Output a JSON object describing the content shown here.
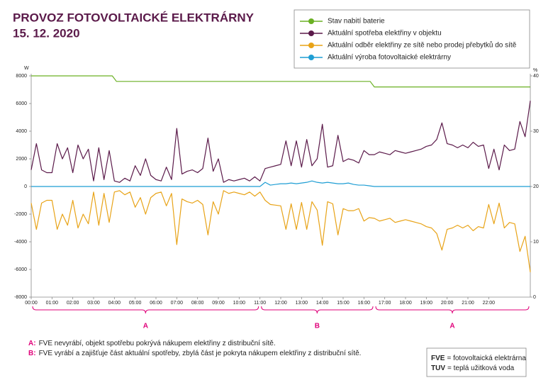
{
  "chart_data": {
    "type": "line",
    "title": "PROVOZ FOTOVOLTAICKÉ ELEKTRÁRNY",
    "subtitle": "15. 12. 2020",
    "y_label": "W",
    "y2_label": "%",
    "x": [
      0,
      0.25,
      0.5,
      0.75,
      1,
      1.25,
      1.5,
      1.75,
      2,
      2.25,
      2.5,
      2.75,
      3,
      3.25,
      3.5,
      3.75,
      4,
      4.25,
      4.5,
      4.75,
      5,
      5.25,
      5.5,
      5.75,
      6,
      6.25,
      6.5,
      6.75,
      7,
      7.25,
      7.5,
      7.75,
      8,
      8.25,
      8.5,
      8.75,
      9,
      9.25,
      9.5,
      9.75,
      10,
      10.25,
      10.5,
      10.75,
      11,
      11.25,
      11.5,
      11.75,
      12,
      12.25,
      12.5,
      12.75,
      13,
      13.25,
      13.5,
      13.75,
      14,
      14.25,
      14.5,
      14.75,
      15,
      15.25,
      15.5,
      15.75,
      16,
      16.25,
      16.5,
      16.75,
      17,
      17.25,
      17.5,
      17.75,
      18,
      18.25,
      18.5,
      18.75,
      19,
      19.25,
      19.5,
      19.75,
      20,
      20.25,
      20.5,
      20.75,
      21,
      21.25,
      21.5,
      21.75,
      22,
      22.25,
      22.5,
      22.75,
      23,
      23.25,
      23.5,
      23.75,
      24
    ],
    "xlim": [
      0,
      24
    ],
    "xticks": [
      {
        "value": 0,
        "label": "00:00"
      },
      {
        "value": 1,
        "label": "01:00"
      },
      {
        "value": 2,
        "label": "02:00"
      },
      {
        "value": 3,
        "label": "03:00"
      },
      {
        "value": 4,
        "label": "04:00"
      },
      {
        "value": 5,
        "label": "05:00"
      },
      {
        "value": 6,
        "label": "06:00"
      },
      {
        "value": 7,
        "label": "07:00"
      },
      {
        "value": 8,
        "label": "08:00"
      },
      {
        "value": 9,
        "label": "09:00"
      },
      {
        "value": 10,
        "label": "10:00"
      },
      {
        "value": 11,
        "label": "11:00"
      },
      {
        "value": 12,
        "label": "12:00"
      },
      {
        "value": 13,
        "label": "13:00"
      },
      {
        "value": 14,
        "label": "14:00"
      },
      {
        "value": 15,
        "label": "15:00"
      },
      {
        "value": 16,
        "label": "16:00"
      },
      {
        "value": 17,
        "label": "17:00"
      },
      {
        "value": 18,
        "label": "18:00"
      },
      {
        "value": 19,
        "label": "19:00"
      },
      {
        "value": 20,
        "label": "20:00"
      },
      {
        "value": 21,
        "label": "21:00"
      },
      {
        "value": 22,
        "label": "22:00"
      }
    ],
    "ylim": [
      -8000,
      8000
    ],
    "yticks": [
      -8000,
      -6000,
      -4000,
      -2000,
      0,
      2000,
      4000,
      6000,
      8000
    ],
    "y2lim": [
      0,
      40
    ],
    "y2ticks": [
      0,
      10,
      20,
      30,
      40
    ],
    "grid": false,
    "legend": "top-right",
    "series": [
      {
        "name": "Stav nabití baterie",
        "color": "#6ab023",
        "axis": "y2",
        "step": true,
        "x": [
          0,
          3.9,
          4.1,
          16.3,
          16.5,
          24
        ],
        "values": [
          40,
          40,
          39,
          39,
          38,
          38
        ]
      },
      {
        "name": "Aktuální spotřeba elektřiny v objektu",
        "color": "#5b1a4a",
        "values": [
          1200,
          3100,
          1200,
          1000,
          1000,
          3100,
          2000,
          2800,
          1000,
          3000,
          2000,
          2700,
          400,
          2800,
          500,
          2600,
          400,
          300,
          600,
          400,
          1500,
          800,
          2000,
          800,
          500,
          400,
          1400,
          500,
          4200,
          900,
          1100,
          1200,
          1000,
          1300,
          3500,
          1100,
          2000,
          300,
          500,
          400,
          500,
          600,
          400,
          700,
          400,
          1300,
          1400,
          1500,
          1600,
          3300,
          1500,
          3300,
          1400,
          3400,
          1500,
          2000,
          4500,
          1400,
          1500,
          3700,
          1800,
          2000,
          1900,
          1700,
          2600,
          2300,
          2300,
          2500,
          2400,
          2300,
          2600,
          2500,
          2400,
          2500,
          2600,
          2700,
          2900,
          3000,
          3400,
          4600,
          3100,
          3000,
          2800,
          3000,
          2800,
          3200,
          2900,
          3000,
          1300,
          2700,
          1200,
          3000,
          2600,
          2700,
          4700,
          3600,
          6200
        ]
      },
      {
        "name": "Aktuální odběr elektřiny ze sítě nebo prodej přebytků do sítě",
        "color": "#e8a317",
        "values": [
          -1200,
          -3100,
          -1200,
          -1000,
          -1000,
          -3100,
          -2000,
          -2800,
          -1000,
          -3000,
          -2000,
          -2700,
          -400,
          -2800,
          -500,
          -2600,
          -400,
          -300,
          -600,
          -400,
          -1500,
          -800,
          -2000,
          -800,
          -500,
          -400,
          -1400,
          -500,
          -4200,
          -900,
          -1100,
          -1200,
          -1000,
          -1300,
          -3500,
          -1100,
          -2000,
          -300,
          -500,
          -400,
          -500,
          -600,
          -400,
          -700,
          -400,
          -1000,
          -1300,
          -1350,
          -1400,
          -3100,
          -1250,
          -3100,
          -1150,
          -3100,
          -1100,
          -1700,
          -4250,
          -1100,
          -1250,
          -3500,
          -1600,
          -1750,
          -1750,
          -1600,
          -2500,
          -2250,
          -2300,
          -2500,
          -2400,
          -2300,
          -2600,
          -2500,
          -2400,
          -2500,
          -2600,
          -2700,
          -2900,
          -3000,
          -3400,
          -4600,
          -3100,
          -3000,
          -2800,
          -3000,
          -2800,
          -3200,
          -2900,
          -3000,
          -1300,
          -2700,
          -1200,
          -3000,
          -2600,
          -2700,
          -4700,
          -3600,
          -6200
        ]
      },
      {
        "name": "Aktuální výroba fotovoltaické elektrárny",
        "color": "#1f9ed4",
        "values": [
          0,
          0,
          0,
          0,
          0,
          0,
          0,
          0,
          0,
          0,
          0,
          0,
          0,
          0,
          0,
          0,
          0,
          0,
          0,
          0,
          0,
          0,
          0,
          0,
          0,
          0,
          0,
          0,
          0,
          0,
          0,
          0,
          0,
          0,
          0,
          0,
          0,
          0,
          0,
          0,
          0,
          0,
          0,
          0,
          0,
          300,
          100,
          150,
          200,
          200,
          250,
          200,
          250,
          300,
          400,
          300,
          250,
          300,
          250,
          200,
          200,
          250,
          150,
          100,
          100,
          50,
          0,
          0,
          0,
          0,
          0,
          0,
          0,
          0,
          0,
          0,
          0,
          0,
          0,
          0,
          0,
          0,
          0,
          0,
          0,
          0,
          0,
          0,
          0,
          0,
          0,
          0,
          0,
          0,
          0,
          0,
          0
        ]
      }
    ],
    "brackets": [
      {
        "label": "A",
        "from": 0,
        "to": 11
      },
      {
        "label": "B",
        "from": 11,
        "to": 16.5
      },
      {
        "label": "A",
        "from": 16.5,
        "to": 24
      }
    ],
    "notes": [
      {
        "key": "A:",
        "text": "FVE nevyrábí, objekt spotřebu pokrývá nákupem elektřiny z distribuční sítě."
      },
      {
        "key": "B:",
        "text": "FVE vyrábí a zajišťuje část aktuální spotřeby, zbylá část je pokryta nákupem elektřiny z distribuční sítě."
      }
    ],
    "glossary": [
      {
        "key": "FVE",
        "text": "= fotovoltaická elektrárna"
      },
      {
        "key": "TUV",
        "text": "= teplá užitková voda"
      }
    ]
  }
}
